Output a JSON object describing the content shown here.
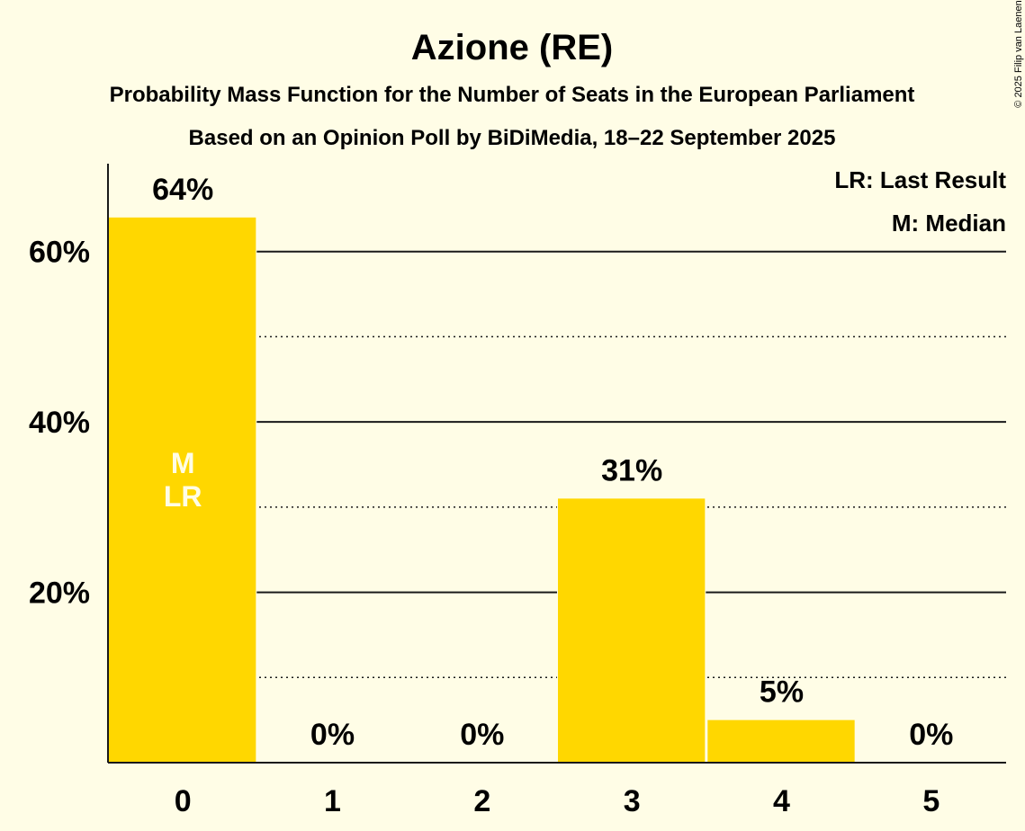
{
  "chart_data": {
    "type": "bar",
    "title": "Azione (RE)",
    "subtitle": "Probability Mass Function for the Number of Seats in the European Parliament",
    "subtitle2": "Based on an Opinion Poll by BiDiMedia, 18–22 September 2025",
    "categories": [
      "0",
      "1",
      "2",
      "3",
      "4",
      "5"
    ],
    "values": [
      64,
      0,
      0,
      31,
      5,
      0
    ],
    "data_labels": [
      "64%",
      "0%",
      "0%",
      "31%",
      "5%",
      "0%"
    ],
    "yticks": [
      20,
      40,
      60
    ],
    "ytick_labels": [
      "20%",
      "40%",
      "60%"
    ],
    "ylim": [
      0,
      70
    ],
    "dotted_gridlines": [
      10,
      30,
      50
    ],
    "median_category": "0",
    "last_result_category": "0",
    "bar_markers": [
      "M",
      "LR"
    ],
    "legend": [
      "LR: Last Result",
      "M: Median"
    ],
    "bar_color": "#FFD700",
    "background_color": "#FFFDE6",
    "copyright": "© 2025 Filip van Laenen"
  }
}
